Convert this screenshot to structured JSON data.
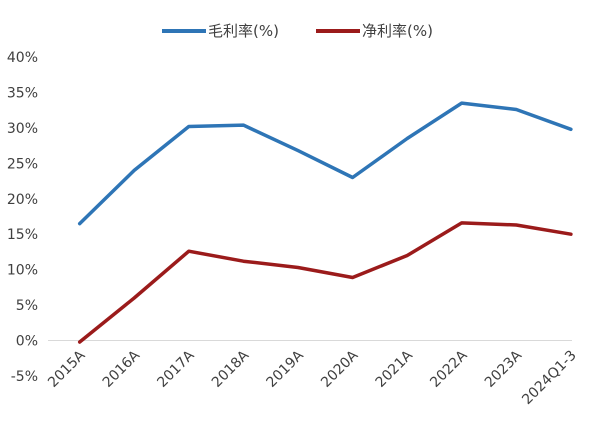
{
  "chart_data": {
    "type": "line",
    "title": "",
    "xlabel": "",
    "ylabel": "",
    "categories": [
      "2015A",
      "2016A",
      "2017A",
      "2018A",
      "2019A",
      "2020A",
      "2021A",
      "2022A",
      "2023A",
      "2024Q1-3"
    ],
    "series": [
      {
        "name": "毛利率(%)",
        "color": "#2e75b6",
        "values": [
          16.5,
          24.0,
          30.2,
          30.4,
          26.8,
          23.0,
          28.5,
          33.5,
          32.6,
          29.8
        ]
      },
      {
        "name": "净利率(%)",
        "color": "#9b1b1b",
        "values": [
          -0.2,
          6.0,
          12.6,
          11.2,
          10.3,
          8.9,
          12.0,
          16.6,
          16.3,
          15.0
        ]
      }
    ],
    "ylim": [
      -5,
      40
    ],
    "yticks": [
      -5,
      0,
      5,
      10,
      15,
      20,
      25,
      30,
      35,
      40
    ],
    "ytick_labels": [
      "-5%",
      "0%",
      "5%",
      "10%",
      "15%",
      "20%",
      "25%",
      "30%",
      "35%",
      "40%"
    ],
    "grid": false,
    "legend_position": "top-center",
    "zero_line_color": "#d9d9d9"
  }
}
